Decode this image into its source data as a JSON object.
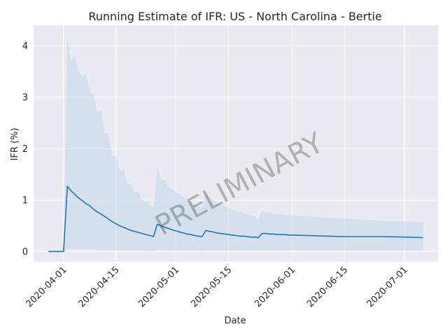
{
  "chart_data": {
    "type": "line",
    "title": "Running Estimate of IFR: US - North Carolina - Bertie",
    "xlabel": "Date",
    "ylabel": "IFR (%)",
    "watermark": "PRELIMINARY",
    "ylim": [
      -0.2,
      4.4
    ],
    "xlim": [
      "2020-03-24",
      "2020-07-10"
    ],
    "y_ticks": [
      0,
      1,
      2,
      3,
      4
    ],
    "x_ticks": [
      "2020-04-01",
      "2020-04-15",
      "2020-05-01",
      "2020-05-15",
      "2020-06-01",
      "2020-06-15",
      "2020-07-01"
    ],
    "grid": true,
    "colors": {
      "background": "#eaeaf2",
      "grid": "#ffffff",
      "line": "#1f77b4",
      "band": "#c5d7ea"
    },
    "series": [
      {
        "x": [
          "2020-03-28",
          "2020-03-29",
          "2020-03-30",
          "2020-03-31",
          "2020-04-01",
          "2020-04-02",
          "2020-04-03",
          "2020-04-04",
          "2020-04-05",
          "2020-04-06",
          "2020-04-07",
          "2020-04-08",
          "2020-04-09",
          "2020-04-10",
          "2020-04-11",
          "2020-04-12",
          "2020-04-13",
          "2020-04-14",
          "2020-04-15",
          "2020-04-16",
          "2020-04-17",
          "2020-04-18",
          "2020-04-19",
          "2020-04-20",
          "2020-04-21",
          "2020-04-22",
          "2020-04-23",
          "2020-04-24",
          "2020-04-25",
          "2020-04-26",
          "2020-04-27",
          "2020-04-28",
          "2020-04-29",
          "2020-04-30",
          "2020-05-01",
          "2020-05-02",
          "2020-05-03",
          "2020-05-04",
          "2020-05-05",
          "2020-05-06",
          "2020-05-07",
          "2020-05-08",
          "2020-05-09",
          "2020-05-10",
          "2020-05-11",
          "2020-05-12",
          "2020-05-13",
          "2020-05-14",
          "2020-05-15",
          "2020-05-16",
          "2020-05-17",
          "2020-05-18",
          "2020-05-19",
          "2020-05-20",
          "2020-05-21",
          "2020-05-22",
          "2020-05-23",
          "2020-05-24",
          "2020-05-25",
          "2020-05-26",
          "2020-05-27",
          "2020-05-28",
          "2020-05-29",
          "2020-05-30",
          "2020-05-31",
          "2020-06-01",
          "2020-06-05",
          "2020-06-10",
          "2020-06-15",
          "2020-06-20",
          "2020-06-25",
          "2020-07-01",
          "2020-07-06"
        ],
        "y": [
          0,
          0,
          0,
          0,
          0,
          1.27,
          1.18,
          1.11,
          1.04,
          0.99,
          0.93,
          0.89,
          0.82,
          0.77,
          0.73,
          0.68,
          0.63,
          0.58,
          0.54,
          0.5,
          0.47,
          0.44,
          0.41,
          0.39,
          0.37,
          0.35,
          0.33,
          0.31,
          0.29,
          0.53,
          0.5,
          0.47,
          0.45,
          0.42,
          0.4,
          0.38,
          0.36,
          0.34,
          0.33,
          0.31,
          0.3,
          0.29,
          0.41,
          0.39,
          0.38,
          0.36,
          0.35,
          0.34,
          0.33,
          0.32,
          0.31,
          0.3,
          0.3,
          0.29,
          0.28,
          0.28,
          0.27,
          0.35,
          0.35,
          0.34,
          0.34,
          0.33,
          0.33,
          0.33,
          0.32,
          0.32,
          0.31,
          0.3,
          0.29,
          0.29,
          0.29,
          0.28,
          0.27
        ],
        "y_low": [
          0,
          0,
          0,
          0,
          0,
          0.06,
          0.06,
          0.05,
          0.05,
          0.05,
          0.04,
          0.04,
          0.04,
          0.04,
          0.03,
          0.03,
          0.03,
          0.03,
          0.02,
          0.02,
          0.02,
          0.02,
          0.02,
          0.02,
          0.02,
          0.02,
          0.01,
          0.01,
          0.01,
          0.03,
          0.03,
          0.03,
          0.02,
          0.02,
          0.02,
          0.02,
          0.02,
          0.02,
          0.02,
          0.02,
          0.02,
          0.01,
          0.02,
          0.02,
          0.02,
          0.02,
          0.02,
          0.02,
          0.02,
          0.02,
          0.02,
          0.02,
          0.02,
          0.02,
          0.02,
          0.02,
          0.02,
          0.02,
          0.02,
          0.02,
          0.02,
          0.02,
          0.02,
          0.02,
          0.02,
          0.02,
          0.02,
          0.02,
          0.02,
          0.02,
          0.02,
          0.02,
          0.02
        ],
        "y_high": [
          0,
          0,
          0,
          0,
          0,
          4.15,
          3.7,
          3.8,
          3.5,
          3.4,
          3.45,
          3.1,
          3.05,
          2.7,
          2.75,
          2.3,
          2.3,
          1.85,
          1.85,
          1.55,
          1.6,
          1.32,
          1.3,
          1.15,
          1.15,
          1.0,
          0.98,
          0.9,
          0.85,
          1.65,
          1.4,
          1.38,
          1.25,
          1.22,
          1.15,
          1.12,
          1.05,
          1.0,
          0.95,
          0.92,
          0.88,
          0.85,
          1.15,
          1.05,
          1.0,
          0.95,
          0.9,
          0.88,
          0.85,
          0.82,
          0.8,
          0.78,
          0.75,
          0.72,
          0.7,
          0.68,
          0.62,
          0.8,
          0.76,
          0.75,
          0.74,
          0.73,
          0.72,
          0.71,
          0.7,
          0.7,
          0.68,
          0.66,
          0.64,
          0.62,
          0.6,
          0.59,
          0.57
        ]
      }
    ]
  }
}
